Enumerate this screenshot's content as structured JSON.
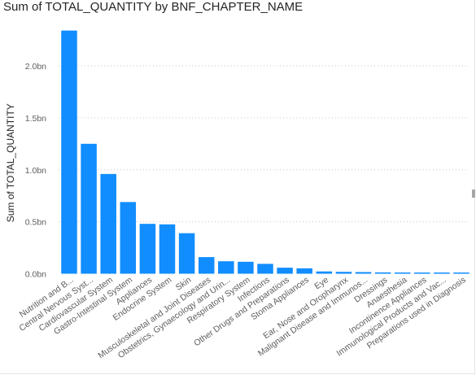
{
  "chart_data": {
    "type": "bar",
    "title": "Sum of TOTAL_QUANTITY by BNF_CHAPTER_NAME",
    "xlabel": "",
    "ylabel": "Sum of TOTAL_QUANTITY",
    "ylim": [
      0,
      2.4
    ],
    "yticks": [
      {
        "value": 0.0,
        "label": "0.0bn"
      },
      {
        "value": 0.5,
        "label": "0.5bn"
      },
      {
        "value": 1.0,
        "label": "1.0bn"
      },
      {
        "value": 1.5,
        "label": "1.5bn"
      },
      {
        "value": 2.0,
        "label": "2.0bn"
      }
    ],
    "grid": true,
    "color": "#118DFF",
    "categories": [
      "Nutrition and B...",
      "Central Nervous Syst...",
      "Cardiovascular System",
      "Gastro-Intestinal System",
      "Appliances",
      "Endocrine System",
      "Skin",
      "Musculoskeletal and Joint Diseases",
      "Obstetrics, Gynaecology and Urin...",
      "Respiratory System",
      "Infections",
      "Other Drugs and Preparations",
      "Stoma Appliances",
      "Eye",
      "Ear, Nose and Oropharynx",
      "Malignant Disease and Immunos...",
      "Dressings",
      "Anaesthesia",
      "Incontinence Appliances",
      "Immunological Products and Vac...",
      "Preparations used in Diagnosis"
    ],
    "values": [
      2.34,
      1.25,
      0.96,
      0.69,
      0.48,
      0.475,
      0.39,
      0.16,
      0.12,
      0.115,
      0.095,
      0.058,
      0.052,
      0.022,
      0.018,
      0.016,
      0.013,
      0.012,
      0.01,
      0.009,
      0.008
    ]
  }
}
